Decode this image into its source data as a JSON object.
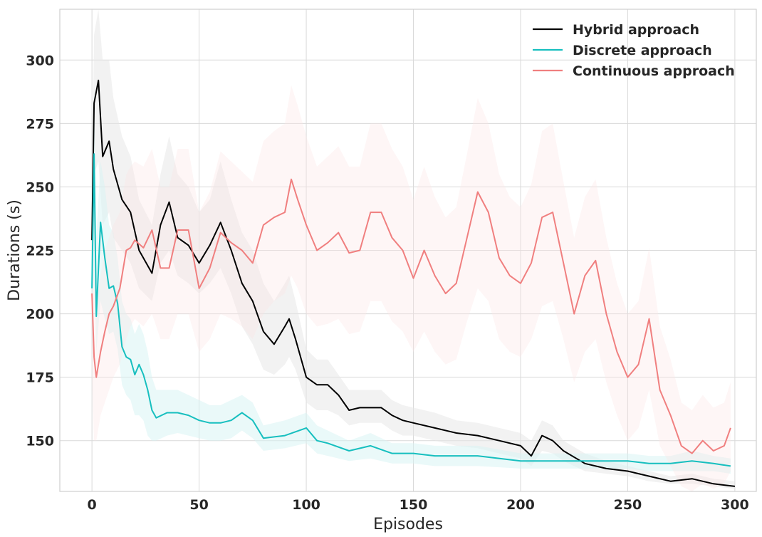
{
  "chart_data": {
    "type": "line",
    "title": "",
    "xlabel": "Episodes",
    "ylabel": "Durations (s)",
    "xlim": [
      -15,
      310
    ],
    "ylim": [
      130,
      320
    ],
    "xticks": [
      0,
      50,
      100,
      150,
      200,
      250,
      300
    ],
    "yticks": [
      150,
      175,
      200,
      225,
      250,
      275,
      300
    ],
    "grid": true,
    "legend_position": "top-right",
    "series": [
      {
        "name": "Hybrid approach",
        "color": "#000000",
        "band_color": "#e6e6e6",
        "band_opacity": 0.5,
        "x": [
          0,
          1,
          3,
          5,
          8,
          10,
          14,
          18,
          22,
          28,
          32,
          36,
          40,
          45,
          50,
          55,
          60,
          65,
          70,
          75,
          80,
          85,
          90,
          92,
          95,
          100,
          105,
          110,
          115,
          120,
          125,
          130,
          135,
          140,
          145,
          150,
          160,
          170,
          180,
          190,
          200,
          205,
          210,
          215,
          220,
          230,
          240,
          250,
          260,
          270,
          280,
          290,
          300
        ],
        "values": [
          229,
          283,
          292,
          262,
          268,
          257,
          245,
          240,
          225,
          216,
          235,
          244,
          230,
          227,
          220,
          227,
          236,
          225,
          212,
          205,
          193,
          188,
          195,
          198,
          190,
          175,
          172,
          172,
          168,
          162,
          163,
          163,
          163,
          160,
          158,
          157,
          155,
          153,
          152,
          150,
          148,
          144,
          152,
          150,
          146,
          141,
          139,
          138,
          136,
          134,
          135,
          133,
          132
        ],
        "lower": [
          215,
          255,
          260,
          235,
          240,
          230,
          225,
          220,
          210,
          205,
          220,
          225,
          215,
          212,
          208,
          212,
          218,
          208,
          195,
          188,
          178,
          176,
          180,
          183,
          178,
          165,
          162,
          162,
          160,
          156,
          157,
          157,
          157,
          154,
          152,
          152,
          150,
          148,
          147,
          145,
          143,
          140,
          146,
          145,
          142,
          138,
          137,
          136,
          134,
          133,
          133,
          132,
          131
        ],
        "upper": [
          250,
          310,
          320,
          300,
          300,
          285,
          270,
          262,
          245,
          235,
          255,
          270,
          255,
          250,
          240,
          245,
          260,
          245,
          232,
          225,
          212,
          205,
          212,
          215,
          205,
          186,
          182,
          182,
          176,
          170,
          170,
          170,
          170,
          166,
          164,
          163,
          161,
          158,
          157,
          155,
          153,
          150,
          158,
          156,
          150,
          145,
          142,
          140,
          138,
          136,
          137,
          135,
          134
        ]
      },
      {
        "name": "Discrete approach",
        "color": "#17bfbf",
        "band_color": "#d5f3f3",
        "band_opacity": 0.5,
        "x": [
          0,
          1,
          2,
          4,
          6,
          8,
          10,
          12,
          14,
          16,
          18,
          20,
          22,
          24,
          26,
          28,
          30,
          35,
          40,
          45,
          50,
          55,
          60,
          65,
          70,
          75,
          80,
          90,
          100,
          105,
          110,
          120,
          130,
          140,
          150,
          160,
          170,
          180,
          200,
          220,
          240,
          250,
          260,
          270,
          280,
          290,
          298
        ],
        "values": [
          210,
          263,
          199,
          236,
          222,
          210,
          211,
          204,
          187,
          183,
          182,
          176,
          180,
          176,
          170,
          162,
          159,
          161,
          161,
          160,
          158,
          157,
          157,
          158,
          161,
          158,
          151,
          152,
          155,
          150,
          149,
          146,
          148,
          145,
          145,
          144,
          144,
          144,
          142,
          142,
          142,
          142,
          141,
          141,
          142,
          141,
          140
        ],
        "lower": [
          180,
          225,
          185,
          205,
          198,
          192,
          193,
          186,
          172,
          168,
          166,
          160,
          160,
          158,
          152,
          150,
          150,
          152,
          153,
          152,
          151,
          150,
          150,
          151,
          154,
          151,
          146,
          147,
          149,
          145,
          144,
          142,
          143,
          141,
          141,
          140,
          140,
          140,
          139,
          139,
          139,
          139,
          138,
          138,
          138,
          138,
          137
        ],
        "upper": [
          240,
          290,
          230,
          260,
          250,
          235,
          232,
          222,
          205,
          200,
          198,
          192,
          196,
          192,
          185,
          175,
          170,
          170,
          170,
          168,
          166,
          164,
          164,
          166,
          168,
          165,
          156,
          158,
          161,
          156,
          154,
          150,
          153,
          149,
          149,
          148,
          148,
          148,
          145,
          145,
          145,
          145,
          144,
          144,
          146,
          144,
          143
        ]
      },
      {
        "name": "Continuous approach",
        "color": "#f07f7f",
        "band_color": "#fbe5e5",
        "band_opacity": 0.35,
        "x": [
          0,
          1,
          2,
          4,
          6,
          8,
          10,
          13,
          16,
          18,
          20,
          24,
          28,
          32,
          36,
          40,
          45,
          50,
          55,
          60,
          65,
          70,
          75,
          80,
          85,
          90,
          93,
          96,
          100,
          105,
          110,
          115,
          120,
          125,
          130,
          135,
          140,
          145,
          150,
          155,
          160,
          165,
          170,
          175,
          180,
          185,
          190,
          195,
          200,
          205,
          210,
          215,
          220,
          225,
          230,
          235,
          240,
          245,
          250,
          255,
          260,
          265,
          270,
          275,
          280,
          285,
          290,
          295,
          298
        ],
        "values": [
          208,
          183,
          175,
          185,
          193,
          200,
          203,
          210,
          225,
          226,
          229,
          226,
          233,
          218,
          218,
          233,
          233,
          210,
          218,
          232,
          228,
          225,
          220,
          235,
          238,
          240,
          253,
          245,
          235,
          225,
          228,
          232,
          224,
          225,
          240,
          240,
          230,
          225,
          214,
          225,
          215,
          208,
          212,
          230,
          248,
          240,
          222,
          215,
          212,
          220,
          238,
          240,
          220,
          200,
          215,
          221,
          200,
          185,
          175,
          180,
          198,
          170,
          160,
          148,
          145,
          150,
          146,
          148,
          155
        ],
        "lower": [
          175,
          150,
          150,
          160,
          165,
          170,
          175,
          180,
          190,
          195,
          198,
          195,
          200,
          190,
          190,
          200,
          200,
          185,
          190,
          200,
          198,
          195,
          190,
          200,
          205,
          208,
          215,
          210,
          200,
          195,
          196,
          198,
          192,
          193,
          205,
          205,
          197,
          193,
          185,
          193,
          185,
          180,
          182,
          197,
          210,
          205,
          190,
          185,
          183,
          190,
          203,
          205,
          190,
          173,
          185,
          190,
          173,
          160,
          150,
          155,
          170,
          148,
          140,
          132,
          130,
          133,
          131,
          133,
          138
        ],
        "upper": [
          240,
          215,
          205,
          215,
          225,
          230,
          235,
          240,
          255,
          258,
          260,
          258,
          265,
          250,
          250,
          265,
          265,
          240,
          248,
          264,
          260,
          256,
          252,
          268,
          272,
          275,
          290,
          282,
          270,
          258,
          262,
          266,
          258,
          258,
          275,
          275,
          265,
          258,
          245,
          258,
          246,
          238,
          242,
          263,
          285,
          275,
          255,
          246,
          242,
          251,
          272,
          275,
          252,
          230,
          246,
          253,
          230,
          212,
          200,
          205,
          226,
          195,
          182,
          165,
          162,
          168,
          163,
          165,
          173
        ]
      }
    ]
  }
}
